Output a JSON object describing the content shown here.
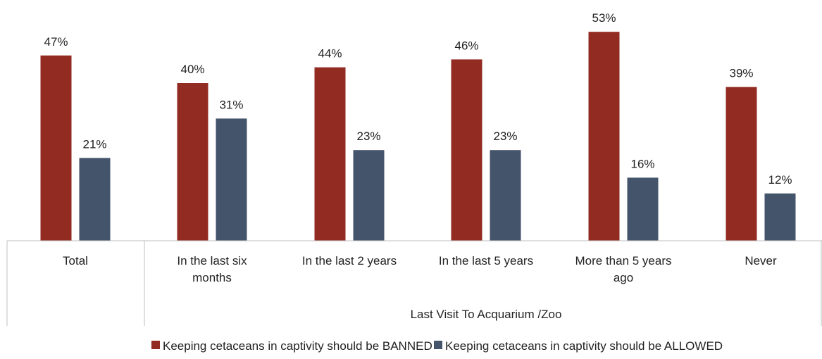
{
  "chart_data": {
    "type": "bar",
    "title": "",
    "xlabel": "",
    "ylabel": "",
    "ylim": [
      0,
      55
    ],
    "grid": false,
    "legend_position": "bottom",
    "value_suffix": "%",
    "group_label": "Last Visit To Acquarium /Zoo",
    "categories": [
      [
        "Total"
      ],
      [
        "In the last six",
        "months"
      ],
      [
        "In the last 2 years"
      ],
      [
        "In the last 5 years"
      ],
      [
        "More than 5 years",
        "ago"
      ],
      [
        "Never"
      ]
    ],
    "series": [
      {
        "name": "Keeping cetaceans in captivity should be BANNED",
        "color": "#922B21",
        "values": [
          47,
          40,
          44,
          46,
          53,
          39
        ]
      },
      {
        "name": "Keeping cetaceans in captivity should be ALLOWED",
        "color": "#44546A",
        "values": [
          21,
          31,
          23,
          23,
          16,
          12
        ]
      }
    ]
  }
}
